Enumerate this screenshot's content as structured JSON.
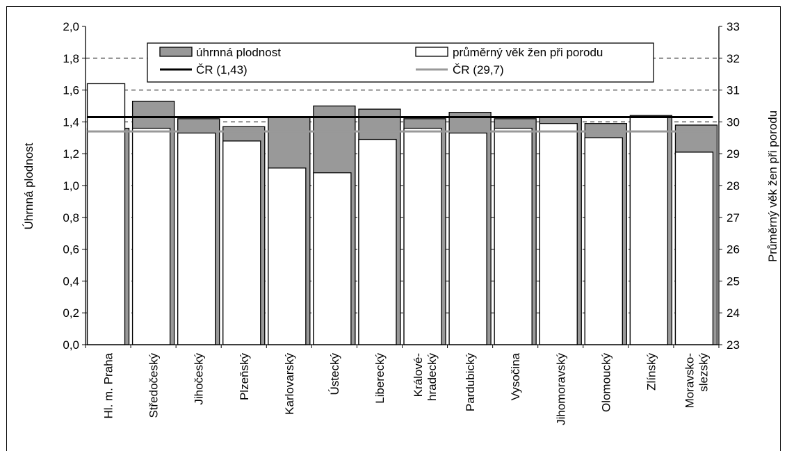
{
  "chart_data": {
    "type": "bar",
    "categories": [
      "Hl. m. Praha",
      "Středočeský",
      "Jihočeský",
      "Plzeňský",
      "Karlovarský",
      "Ústecký",
      "Liberecký",
      "Králové-\nhradecký",
      "Pardubický",
      "Vysočina",
      "Jihomoravský",
      "Olomoucký",
      "Zlínský",
      "Moravsko-\nslezský"
    ],
    "series": [
      {
        "name": "úhrnná plodnost",
        "axis": "left",
        "color": "#999999",
        "values": [
          1.36,
          1.53,
          1.42,
          1.37,
          1.43,
          1.5,
          1.48,
          1.42,
          1.46,
          1.42,
          1.43,
          1.39,
          1.44,
          1.38
        ]
      },
      {
        "name": "průměrný věk žen při porodu",
        "axis": "right",
        "color": "#ffffff",
        "values": [
          31.2,
          29.8,
          29.65,
          29.4,
          28.55,
          28.4,
          29.45,
          29.8,
          29.65,
          29.8,
          29.95,
          29.5,
          30.15,
          29.05
        ]
      }
    ],
    "reference_lines": [
      {
        "name": "ČR (1,43)",
        "axis": "left",
        "value": 1.43,
        "color": "#000000"
      },
      {
        "name": "ČR (29,7)",
        "axis": "right",
        "value": 29.7,
        "color": "#999999"
      }
    ],
    "ylabel_left": "Úhrnná plodnost",
    "ylabel_right": "Průměrný věk žen při porodu",
    "ylim_left": [
      0,
      2
    ],
    "ylim_right": [
      23,
      33
    ],
    "yticks_left": [
      "0,0",
      "0,2",
      "0,4",
      "0,6",
      "0,8",
      "1,0",
      "1,2",
      "1,4",
      "1,6",
      "1,8",
      "2,0"
    ],
    "yticks_right": [
      "23",
      "24",
      "25",
      "26",
      "27",
      "28",
      "29",
      "30",
      "31",
      "32",
      "33"
    ],
    "grid": "dashed horizontal",
    "legend_position": "top"
  }
}
